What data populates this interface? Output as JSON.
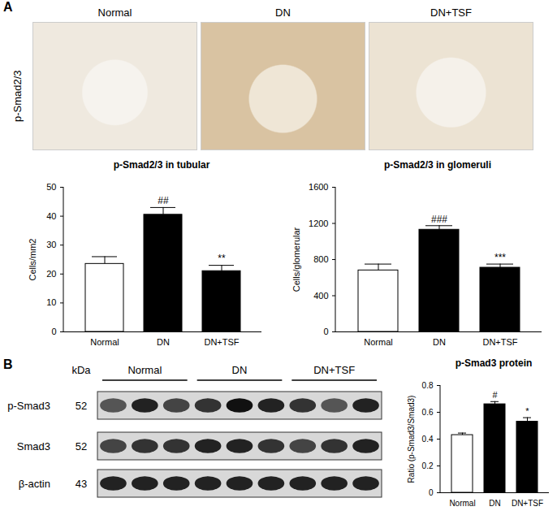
{
  "chart_data": [
    {
      "type": "bar",
      "title": "p-Smad2/3 in tubular",
      "y_label": "Cells/mm2",
      "categories": [
        "Normal",
        "DN",
        "DN+TSF"
      ],
      "values": [
        23.5,
        40.5,
        21
      ],
      "errors": [
        2.5,
        2.5,
        2
      ],
      "annotations": [
        null,
        "##",
        "**"
      ],
      "colors": [
        "#ffffff",
        "#000000",
        "#000000"
      ],
      "ylim": [
        0,
        50
      ],
      "yticks": [
        0,
        10,
        20,
        30,
        40,
        50
      ]
    },
    {
      "type": "bar",
      "title": "p-Smad2/3 in glomeruli",
      "y_label": "Cells/glomerular",
      "categories": [
        "Normal",
        "DN",
        "DN+TSF"
      ],
      "values": [
        680,
        1130,
        710
      ],
      "errors": [
        70,
        45,
        40
      ],
      "annotations": [
        null,
        "###",
        "***"
      ],
      "colors": [
        "#ffffff",
        "#000000",
        "#000000"
      ],
      "ylim": [
        0,
        1600
      ],
      "yticks": [
        0,
        400,
        800,
        1200,
        1600
      ]
    },
    {
      "type": "bar",
      "title": "p-Smad3 protein",
      "y_label": "Ratio (p-Smad3/Smad3)",
      "categories": [
        "Normal",
        "DN",
        "DN+TSF"
      ],
      "values": [
        0.43,
        0.66,
        0.53
      ],
      "errors": [
        0.015,
        0.02,
        0.03
      ],
      "annotations": [
        null,
        "#",
        "*"
      ],
      "colors": [
        "#ffffff",
        "#000000",
        "#000000"
      ],
      "ylim": [
        0,
        0.8
      ],
      "yticks": [
        0,
        0.2,
        0.4,
        0.6,
        0.8
      ]
    }
  ],
  "figure": {
    "panel_labels": [
      "A",
      "B"
    ],
    "image_row": {
      "row_label": "p-Smad2/3",
      "columns": [
        "Normal",
        "DN",
        "DN+TSF"
      ]
    },
    "blot": {
      "unit_label": "kDa",
      "groups": [
        "Normal",
        "DN",
        "DN+TSF"
      ],
      "lanes_per_group": 3,
      "rows": [
        {
          "label": "p-Smad3",
          "kda": 52
        },
        {
          "label": "Smad3",
          "kda": 52
        },
        {
          "label": "β-actin",
          "kda": 43
        }
      ]
    }
  }
}
